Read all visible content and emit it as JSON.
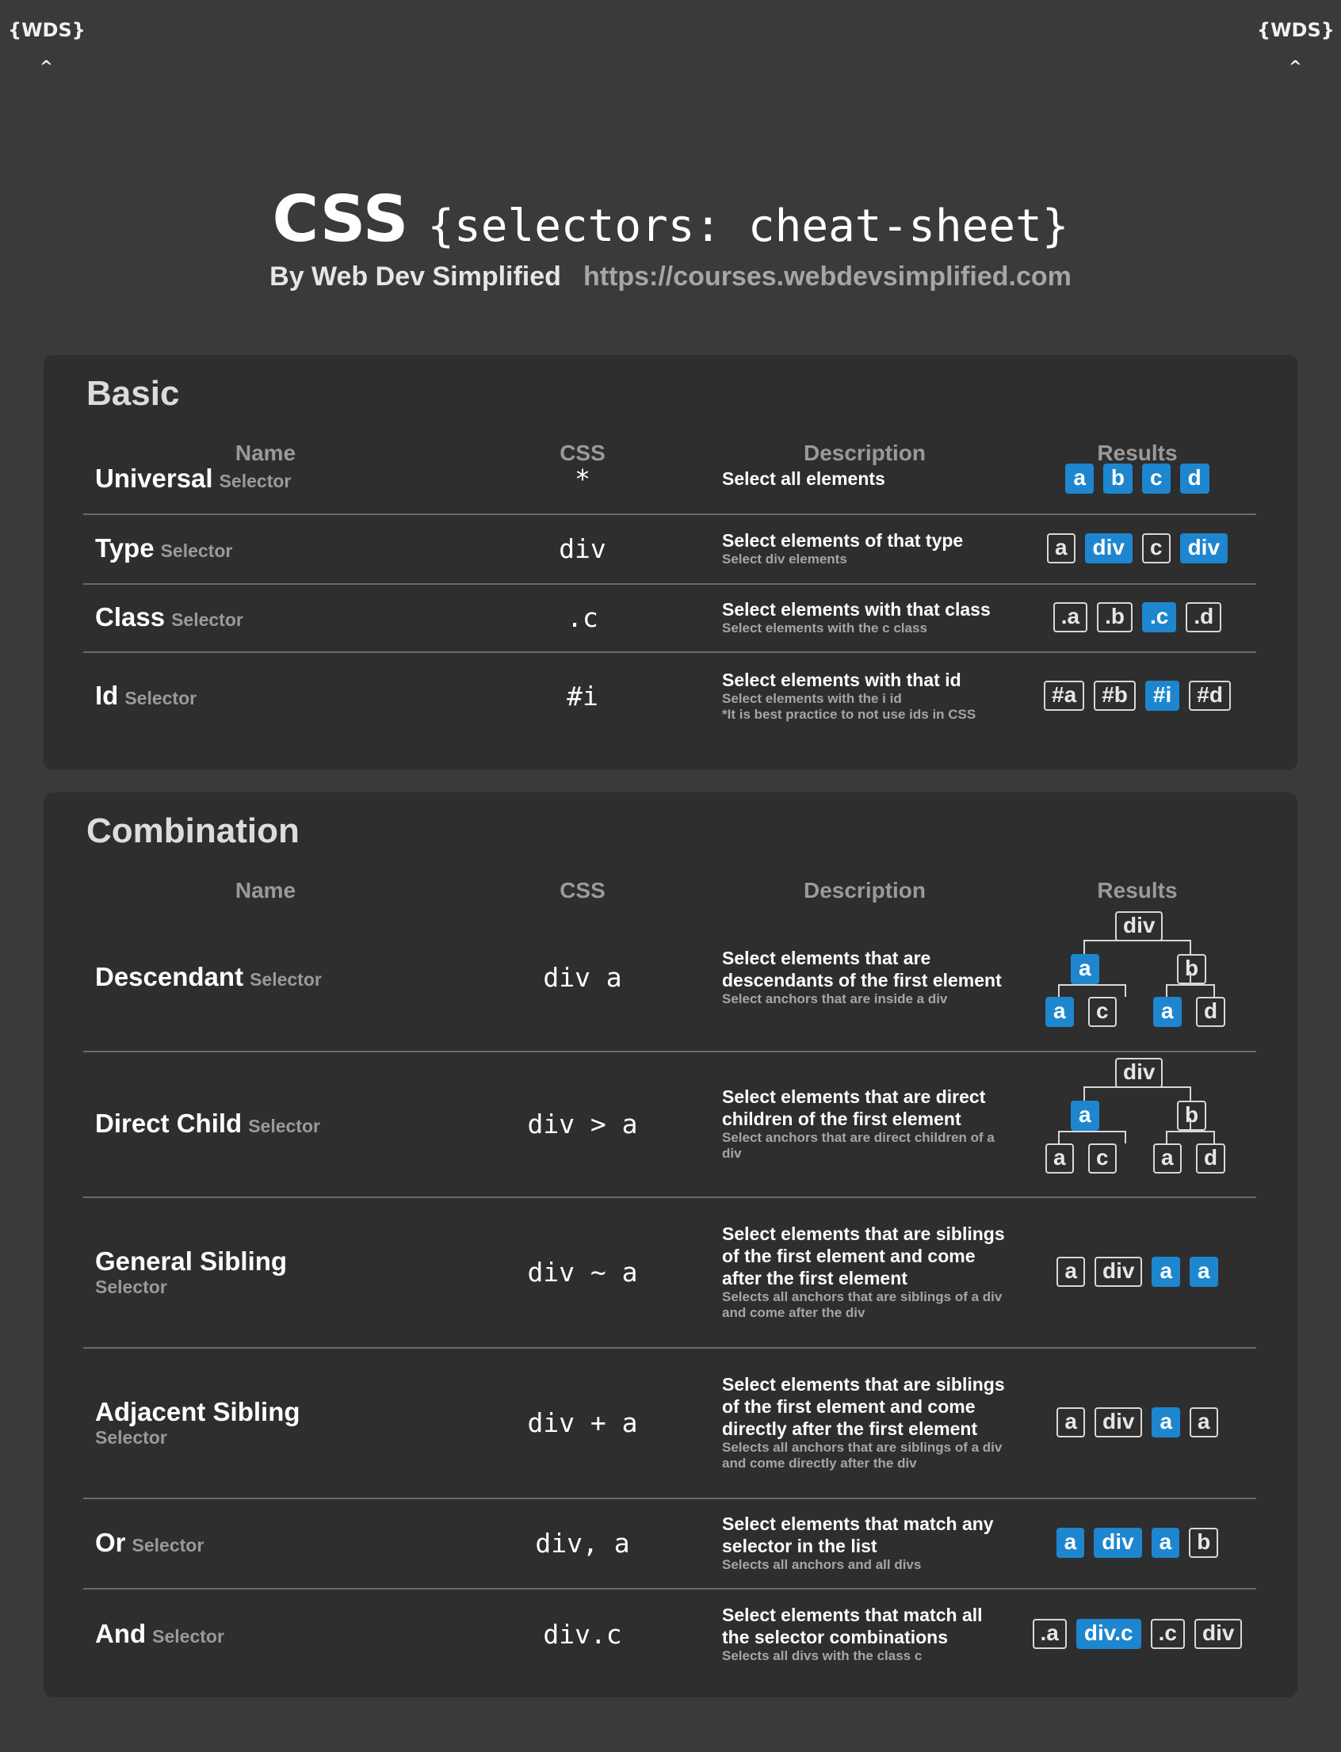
{
  "logos": {
    "text": "{WDS}",
    "caret": "^"
  },
  "header": {
    "title_main": "CSS",
    "title_mono": "{selectors: cheat-sheet}",
    "byline": "By Web Dev Simplified",
    "url": "https://courses.webdevsimplified.com"
  },
  "columns": {
    "name": "Name",
    "css": "CSS",
    "description": "Description",
    "results": "Results"
  },
  "basic": {
    "title": "Basic",
    "rows": [
      {
        "name": "Universal",
        "suffix": "Selector",
        "css": "*",
        "desc": "Select all elements",
        "sub1": "",
        "sub2": "",
        "results": [
          {
            "t": "a",
            "s": true
          },
          {
            "t": "b",
            "s": true
          },
          {
            "t": "c",
            "s": true
          },
          {
            "t": "d",
            "s": true
          }
        ]
      },
      {
        "name": "Type",
        "suffix": "Selector",
        "css": "div",
        "desc": "Select elements of that type",
        "sub1": "Select div elements",
        "sub2": "",
        "results": [
          {
            "t": "a",
            "s": false
          },
          {
            "t": "div",
            "s": true
          },
          {
            "t": "c",
            "s": false
          },
          {
            "t": "div",
            "s": true
          }
        ]
      },
      {
        "name": "Class",
        "suffix": "Selector",
        "css": ".c",
        "desc": "Select elements with that class",
        "sub1": "Select elements with the c class",
        "sub2": "",
        "results": [
          {
            "t": ".a",
            "s": false
          },
          {
            "t": ".b",
            "s": false
          },
          {
            "t": ".c",
            "s": true
          },
          {
            "t": ".d",
            "s": false
          }
        ]
      },
      {
        "name": "Id",
        "suffix": "Selector",
        "css": "#i",
        "desc": "Select elements with that id",
        "sub1": "Select elements with the i id",
        "sub2": "*It is best practice to not use ids in CSS",
        "results": [
          {
            "t": "#a",
            "s": false
          },
          {
            "t": "#b",
            "s": false
          },
          {
            "t": "#i",
            "s": true
          },
          {
            "t": "#d",
            "s": false
          }
        ]
      }
    ]
  },
  "combination": {
    "title": "Combination",
    "rows": [
      {
        "name": "Descendant",
        "suffix": "Selector",
        "css": "div a",
        "desc": "Select elements that are descendants of the first element",
        "sub": "Select anchors that are inside a div",
        "tree": {
          "root": "div",
          "mid": [
            {
              "t": "a",
              "s": true
            },
            {
              "t": "b",
              "s": false
            }
          ],
          "leaves": [
            {
              "t": "a",
              "s": true
            },
            {
              "t": "c",
              "s": false
            },
            {
              "t": "a",
              "s": true
            },
            {
              "t": "d",
              "s": false
            }
          ]
        }
      },
      {
        "name": "Direct Child",
        "suffix": "Selector",
        "css": "div > a",
        "desc": "Select elements that are direct children of the first element",
        "sub": "Select anchors that are direct children of a div",
        "tree": {
          "root": "div",
          "mid": [
            {
              "t": "a",
              "s": true
            },
            {
              "t": "b",
              "s": false
            }
          ],
          "leaves": [
            {
              "t": "a",
              "s": false
            },
            {
              "t": "c",
              "s": false
            },
            {
              "t": "a",
              "s": false
            },
            {
              "t": "d",
              "s": false
            }
          ]
        }
      },
      {
        "name": "General Sibling",
        "suffix": "Selector",
        "css": "div ~ a",
        "desc": "Select elements that are siblings of the first element and come after the first element",
        "sub": "Selects all anchors that are siblings of a div and come after the div",
        "results": [
          {
            "t": "a",
            "s": false
          },
          {
            "t": "div",
            "s": false
          },
          {
            "t": "a",
            "s": true
          },
          {
            "t": "a",
            "s": true
          }
        ]
      },
      {
        "name": "Adjacent Sibling",
        "suffix": "Selector",
        "css": "div + a",
        "desc": "Select elements that are siblings of the first element and come directly after the first element",
        "sub": "Selects all anchors that are siblings of a div and come directly after the div",
        "results": [
          {
            "t": "a",
            "s": false
          },
          {
            "t": "div",
            "s": false
          },
          {
            "t": "a",
            "s": true
          },
          {
            "t": "a",
            "s": false
          }
        ]
      },
      {
        "name": "Or",
        "suffix": "Selector",
        "css": "div, a",
        "desc": "Select elements that match any selector in the list",
        "sub": "Selects all anchors and all divs",
        "results": [
          {
            "t": "a",
            "s": true
          },
          {
            "t": "div",
            "s": true
          },
          {
            "t": "a",
            "s": true
          },
          {
            "t": "b",
            "s": false
          }
        ]
      },
      {
        "name": "And",
        "suffix": "Selector",
        "css": "div.c",
        "desc": "Select elements that match all the selector combinations",
        "sub": "Selects all divs with the class c",
        "results": [
          {
            "t": ".a",
            "s": false
          },
          {
            "t": "div.c",
            "s": true
          },
          {
            "t": ".c",
            "s": false
          },
          {
            "t": "div",
            "s": false
          }
        ]
      }
    ]
  },
  "colors": {
    "background": "#3a3a3b",
    "panel": "#2e2e2f",
    "highlight": "#1d86cf"
  }
}
